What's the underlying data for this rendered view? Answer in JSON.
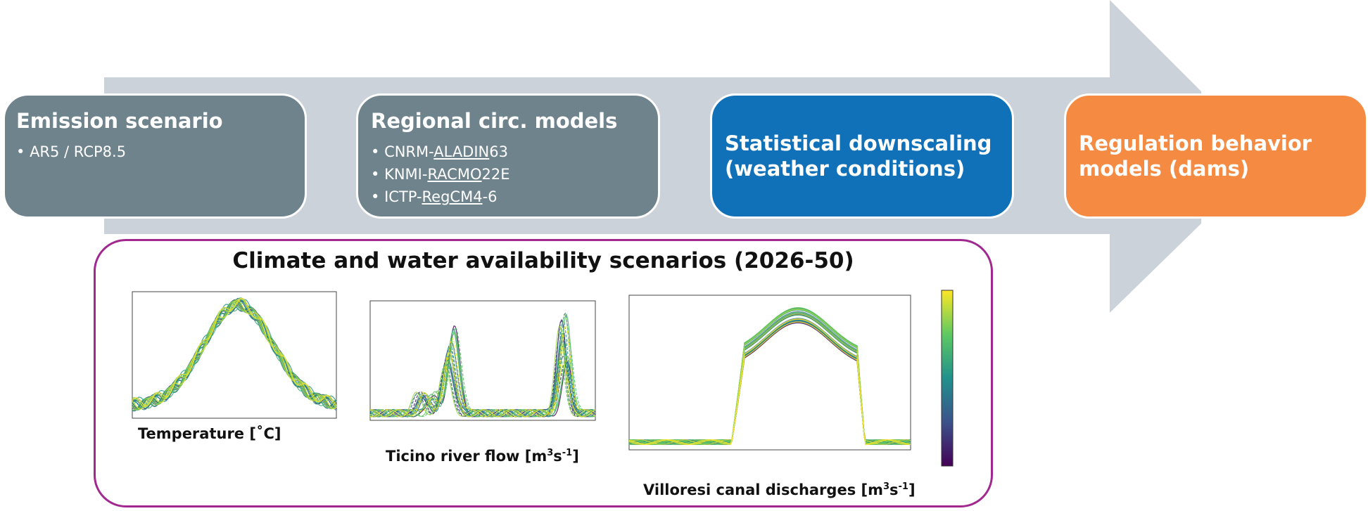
{
  "steps": [
    {
      "title": "Emission scenario",
      "items": [
        "AR5 / RCP8.5"
      ]
    },
    {
      "title": "Regional circ. models",
      "items": [
        {
          "prefix": "CNRM-",
          "underlined": "ALADIN",
          "suffix": "63"
        },
        {
          "prefix": "KNMI-",
          "underlined": "RACMO",
          "suffix": "22E"
        },
        {
          "prefix": "ICTP-",
          "underlined": "RegCM4",
          "suffix": "-6"
        }
      ]
    },
    {
      "title": "Statistical downscaling (weather conditions)"
    },
    {
      "title": "Regulation  behavior models (dams)"
    }
  ],
  "scenarios": {
    "title": "Climate and water availability scenarios (2026-50)",
    "captions": {
      "temperature": "Temperature [˚C]",
      "ticino_main": "Ticino river flow [m",
      "villoresi_main": "Villoresi canal discharges [m",
      "unit_sup_3": "3",
      "unit_s": "s",
      "unit_sup_neg1": "-1",
      "unit_close": "]"
    }
  },
  "colors": {
    "arrow": "#ccd2d9",
    "step_gray": "#6f838d",
    "step_blue": "#1070b8",
    "step_orange": "#f58a42",
    "panel_border": "#a0288f",
    "colormap": [
      "#440154",
      "#3b528b",
      "#21918c",
      "#5ec962",
      "#fde725"
    ]
  },
  "chart_data": [
    {
      "type": "line",
      "title": "",
      "xlabel": "",
      "ylabel": "",
      "xlim": [
        0,
        365
      ],
      "ylim": [
        0,
        30
      ],
      "shape": "seasonal temperature curve, multiple ensemble series"
    },
    {
      "type": "line",
      "title": "",
      "xlabel": "",
      "ylabel": "",
      "xlim": [
        0,
        365
      ],
      "ylim": [
        0,
        600
      ],
      "shape": "river flow with spring and autumn peaks, multiple ensemble series"
    },
    {
      "type": "line",
      "title": "",
      "xlabel": "",
      "ylabel": "",
      "xlim": [
        0,
        275
      ],
      "ylim": [
        0,
        70
      ],
      "shape": "canal discharge plateau between day 100 and 270, multiple ensemble series",
      "colorbar": true
    }
  ]
}
